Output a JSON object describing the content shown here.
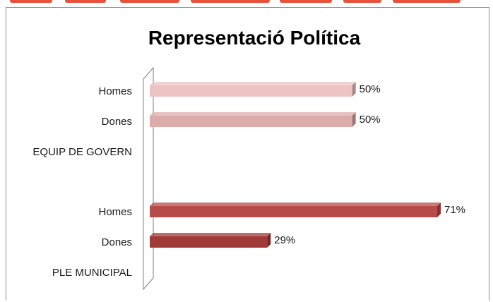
{
  "chart_data": {
    "type": "bar",
    "orientation": "horizontal",
    "title": "Representació Política",
    "categories": [
      "PLE MUNICIPAL",
      "Dones",
      "Homes",
      "EQUIP DE GOVERN",
      "Dones",
      "Homes"
    ],
    "values": [
      null,
      29,
      71,
      null,
      50,
      50
    ],
    "value_labels": [
      "",
      "29%",
      "71%",
      "",
      "50%",
      "50%"
    ],
    "bar_colors": [
      "#b04a47",
      "#a13b38",
      "#b74c4a",
      "#b04a47",
      "#ddabaa",
      "#ebc4c3"
    ],
    "xlim": [
      0,
      100
    ],
    "unit": "%",
    "legend": "none",
    "grid": false
  }
}
